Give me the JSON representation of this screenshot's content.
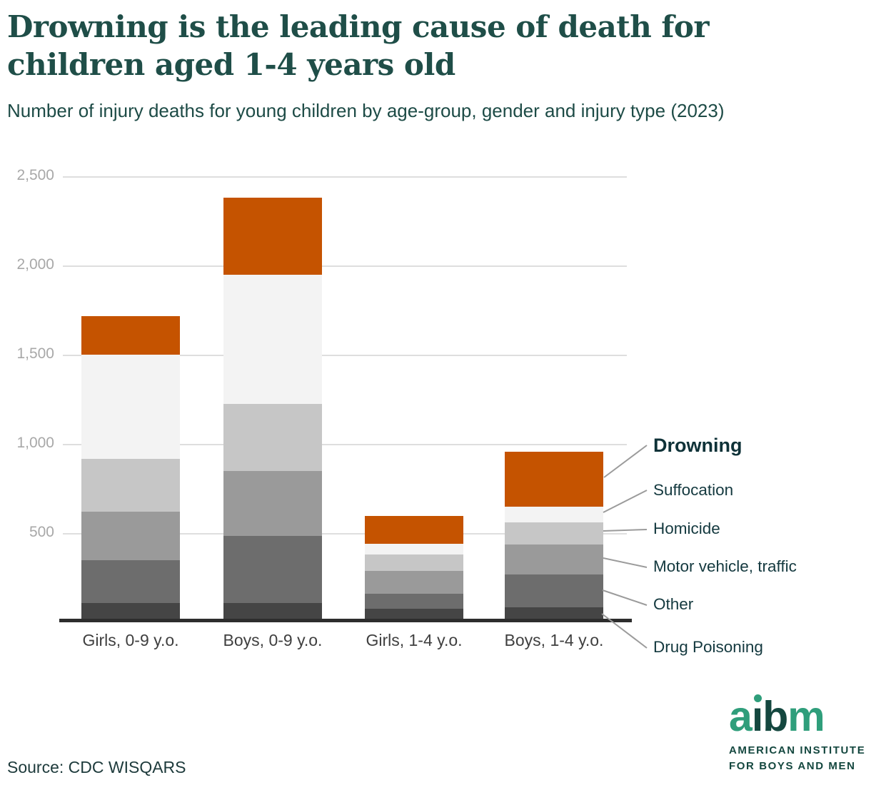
{
  "header": {
    "title": "Drowning is the leading cause of death for children aged 1-4 years old",
    "title_lines": [
      "Drowning is the leading cause of death for",
      "children aged 1-4 years old"
    ],
    "subtitle": "Number of injury deaths for young children by age-group, gender and injury type (2023)"
  },
  "source": "Source: CDC WISQARS",
  "logo": {
    "word": "aibm",
    "letters": [
      {
        "ch": "a",
        "tone": "green"
      },
      {
        "ch": "i",
        "tone": "dark"
      },
      {
        "ch": "b",
        "tone": "dark"
      },
      {
        "ch": "m",
        "tone": "green"
      }
    ],
    "line1": "AMERICAN INSTITUTE",
    "line2": "FOR BOYS AND MEN",
    "green": "#2f9e7b",
    "dark": "#14473f"
  },
  "colors": {
    "title_teal": "#1f4e48",
    "legend_text": "#14393f",
    "axis_line": "#2d2d2d",
    "gridline": "#dedede",
    "ytick_text": "#a8a8a8",
    "xlabel_text": "#3f3f3f",
    "connector": "#9b9b9b",
    "drowning_orange": "#c55300"
  },
  "chart_data": {
    "type": "bar",
    "stacked": true,
    "title": "Number of injury deaths for young children by age-group, gender and injury type (2023)",
    "xlabel": "",
    "ylabel": "",
    "ylim": [
      0,
      2500
    ],
    "grid": true,
    "legend_position": "right",
    "categories": [
      "Girls, 0-9 y.o.",
      "Boys, 0-9 y.o.",
      "Girls, 1-4 y.o.",
      "Boys, 1-4 y.o."
    ],
    "series": [
      {
        "name": "Drug Poisoning",
        "color": "#454545",
        "values": [
          110,
          110,
          75,
          85
        ]
      },
      {
        "name": "Other",
        "color": "#6d6d6d",
        "values": [
          240,
          375,
          85,
          185
        ]
      },
      {
        "name": "Motor vehicle, traffic",
        "color": "#9a9a9a",
        "values": [
          270,
          365,
          130,
          165
        ]
      },
      {
        "name": "Homicide",
        "color": "#c6c6c6",
        "values": [
          295,
          375,
          90,
          125
        ]
      },
      {
        "name": "Suffocation",
        "color": "#f3f3f3",
        "values": [
          585,
          725,
          60,
          90
        ]
      },
      {
        "name": "Drowning",
        "color": "#c55300",
        "values": [
          215,
          430,
          155,
          305
        ]
      }
    ],
    "totals": [
      1715,
      2380,
      595,
      955
    ],
    "yticks": [
      {
        "value": 500,
        "label": "500"
      },
      {
        "value": 1000,
        "label": "1,000"
      },
      {
        "value": 1500,
        "label": "1,500"
      },
      {
        "value": 2000,
        "label": "2,000"
      },
      {
        "value": 2500,
        "label": "2,500"
      }
    ]
  },
  "legend": {
    "items": [
      {
        "label": "Drowning",
        "bold": true
      },
      {
        "label": "Suffocation",
        "bold": false
      },
      {
        "label": "Homicide",
        "bold": false
      },
      {
        "label": "Motor vehicle, traffic",
        "bold": false
      },
      {
        "label": "Other",
        "bold": false
      },
      {
        "label": "Drug Poisoning",
        "bold": false
      }
    ]
  }
}
